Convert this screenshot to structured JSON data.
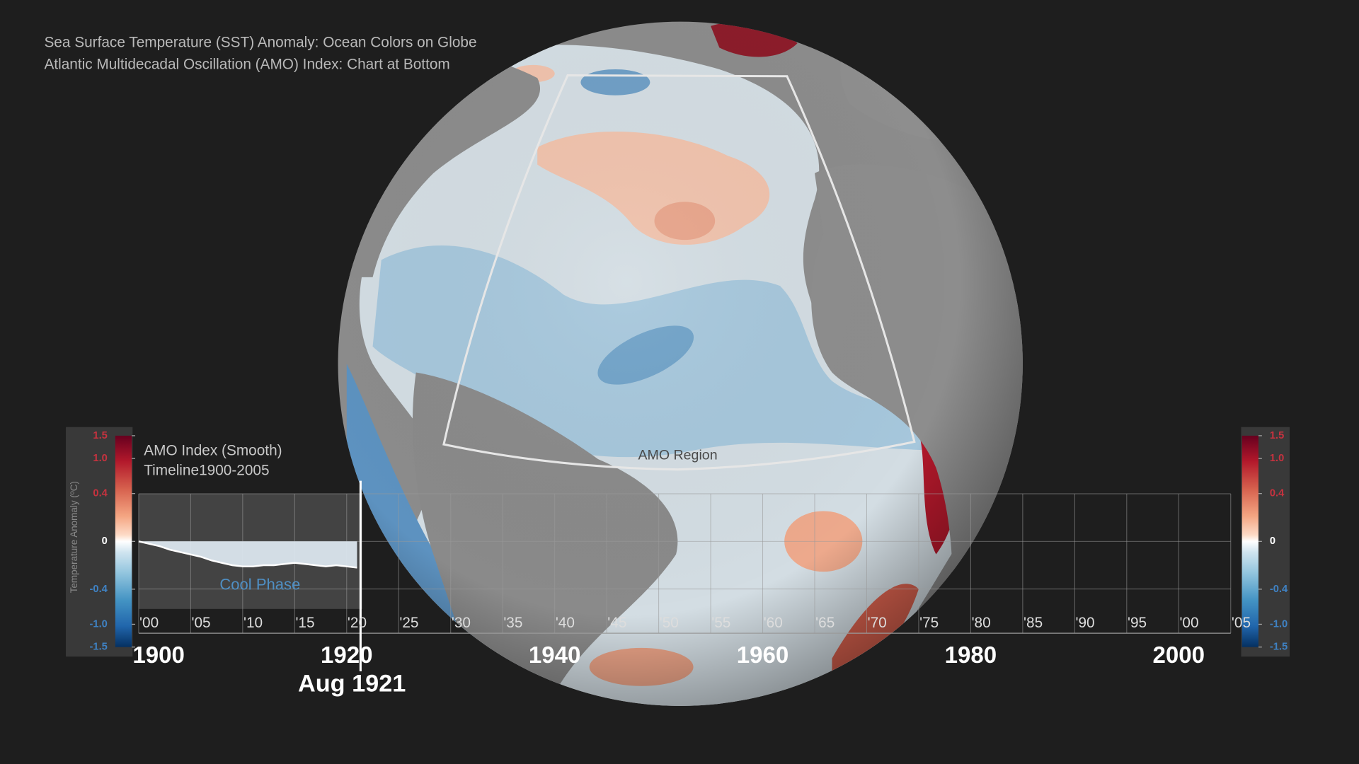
{
  "header": {
    "line1": "Sea Surface Temperature (SST) Anomaly: Ocean Colors on Globe",
    "line2": "Atlantic Multidecadal Oscillation (AMO) Index: Chart at Bottom"
  },
  "globe": {
    "region_label": "AMO Region"
  },
  "chart_data": {
    "type": "area",
    "title": "AMO Index (Smooth)",
    "subtitle": "Timeline1900-2005",
    "y_label": "Temperature Anomaly (ºC)",
    "phase_label": "Cool Phase",
    "current_date": "Aug 1921",
    "x": [
      1900,
      1901,
      1902,
      1903,
      1904,
      1905,
      1906,
      1907,
      1908,
      1909,
      1910,
      1911,
      1912,
      1913,
      1914,
      1915,
      1916,
      1917,
      1918,
      1919,
      1920,
      1921
    ],
    "values": [
      0,
      -0.02,
      -0.04,
      -0.07,
      -0.09,
      -0.11,
      -0.13,
      -0.16,
      -0.18,
      -0.2,
      -0.21,
      -0.21,
      -0.2,
      -0.2,
      -0.19,
      -0.18,
      -0.19,
      -0.2,
      -0.21,
      -0.2,
      -0.21,
      -0.22
    ],
    "xlim": [
      1900,
      2005
    ],
    "ylim": [
      -0.6,
      0.4
    ],
    "xticks": [
      {
        "value": 1900,
        "label": "'00"
      },
      {
        "value": 1905,
        "label": "'05"
      },
      {
        "value": 1910,
        "label": "'10"
      },
      {
        "value": 1915,
        "label": "'15"
      },
      {
        "value": 1920,
        "label": "'20"
      },
      {
        "value": 1925,
        "label": "'25"
      },
      {
        "value": 1930,
        "label": "'30"
      },
      {
        "value": 1935,
        "label": "'35"
      },
      {
        "value": 1940,
        "label": "'40"
      },
      {
        "value": 1945,
        "label": "'45"
      },
      {
        "value": 1950,
        "label": "'50"
      },
      {
        "value": 1955,
        "label": "'55"
      },
      {
        "value": 1960,
        "label": "'60"
      },
      {
        "value": 1965,
        "label": "'65"
      },
      {
        "value": 1970,
        "label": "'70"
      },
      {
        "value": 1975,
        "label": "'75"
      },
      {
        "value": 1980,
        "label": "'80"
      },
      {
        "value": 1985,
        "label": "'85"
      },
      {
        "value": 1990,
        "label": "'90"
      },
      {
        "value": 1995,
        "label": "'95"
      },
      {
        "value": 2000,
        "label": "'00"
      },
      {
        "value": 2005,
        "label": "'05"
      }
    ],
    "decade_labels": [
      1900,
      1920,
      1940,
      1960,
      1980,
      2000
    ],
    "colorbar_lim": [
      -1.5,
      1.5
    ],
    "colorbar_ticks": [
      1.5,
      {
        "value": 1,
        "label": "1.0"
      },
      0.4,
      0,
      -0.4,
      {
        "value": -1,
        "label": "-1.0"
      },
      -1.5
    ]
  }
}
